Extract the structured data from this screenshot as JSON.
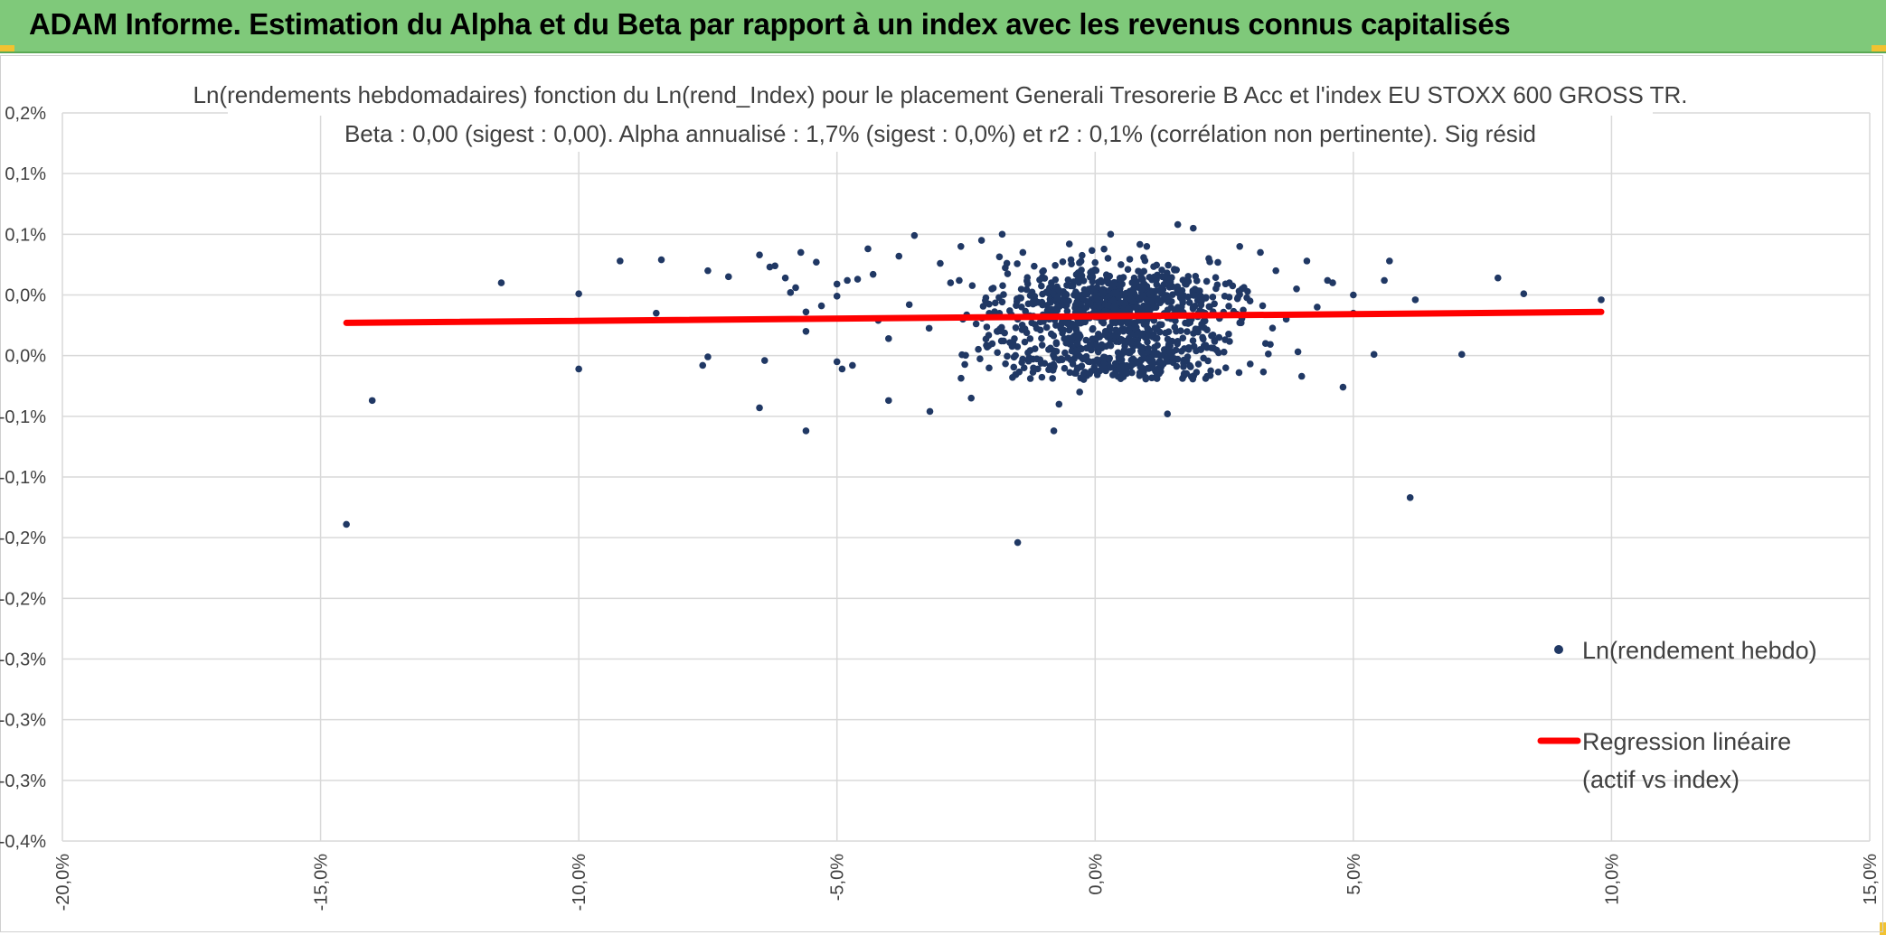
{
  "banner": {
    "title": "ADAM Informe. Estimation du Alpha et du Beta par rapport à un index avec les revenus connus capitalisés"
  },
  "colors": {
    "banner": "#7fc97a",
    "points": "#203864",
    "regression": "#ff0000",
    "grid": "#d9d9d9"
  },
  "chart_data": {
    "type": "scatter",
    "title_lines": [
      "Ln(rendements hebdomadaires) fonction du Ln(rend_Index) pour le placement Generali Tresorerie B Acc et l'index EU STOXX 600 GROSS TR.",
      "Beta : 0,00 (sigest : 0,00). Alpha annualisé : 1,7% (sigest : 0,0%) et r2 : 0,1% (corrélation non pertinente). Sig résid"
    ],
    "xlim": [
      -20,
      15
    ],
    "ylim": [
      -0.4,
      0.2
    ],
    "x_ticks": [
      -20,
      -15,
      -10,
      -5,
      0,
      5,
      10,
      15
    ],
    "x_tick_labels": [
      "-20,0%",
      "-15,0%",
      "-10,0%",
      "-5,0%",
      "0,0%",
      "5,0%",
      "10,0%",
      "15,0%"
    ],
    "y_ticks": [
      0.2,
      0.15,
      0.1,
      0.05,
      0.0,
      -0.05,
      -0.1,
      -0.15,
      -0.2,
      -0.25,
      -0.3,
      -0.35,
      -0.4
    ],
    "y_tick_labels": [
      "0,2%",
      "0,1%",
      "0,1%",
      "0,0%",
      "0,0%",
      "-0,1%",
      "-0,1%",
      "-0,2%",
      "-0,2%",
      "-0,3%",
      "-0,3%",
      "-0,3%",
      "-0,4%"
    ],
    "grid": true,
    "legend_position": "right",
    "series": [
      {
        "name": "Ln(rendement hebdo)",
        "kind": "points",
        "points": [
          [
            -14.5,
            -0.139
          ],
          [
            -14.0,
            -0.037
          ],
          [
            -11.5,
            0.06
          ],
          [
            -10.0,
            0.051
          ],
          [
            -10.0,
            -0.011
          ],
          [
            -9.2,
            0.078
          ],
          [
            -8.5,
            0.035
          ],
          [
            -8.4,
            0.079
          ],
          [
            -7.5,
            0.07
          ],
          [
            -7.5,
            -0.001
          ],
          [
            -7.1,
            0.065
          ],
          [
            -7.6,
            -0.008
          ],
          [
            -6.5,
            0.083
          ],
          [
            -6.3,
            0.073
          ],
          [
            -6.2,
            0.074
          ],
          [
            -6.4,
            -0.004
          ],
          [
            -6.5,
            -0.043
          ],
          [
            -6.0,
            0.064
          ],
          [
            -5.9,
            0.052
          ],
          [
            -5.8,
            0.056
          ],
          [
            -5.7,
            0.085
          ],
          [
            -5.6,
            0.036
          ],
          [
            -5.6,
            0.02
          ],
          [
            -5.6,
            -0.062
          ],
          [
            -5.4,
            0.077
          ],
          [
            -5.3,
            0.041
          ],
          [
            -5.0,
            0.049
          ],
          [
            -5.0,
            0.059
          ],
          [
            -4.8,
            0.062
          ],
          [
            -4.6,
            0.063
          ],
          [
            -4.4,
            0.088
          ],
          [
            -4.3,
            0.067
          ],
          [
            -4.2,
            0.029
          ],
          [
            -4.0,
            0.014
          ],
          [
            -4.0,
            -0.037
          ],
          [
            -5.0,
            -0.005
          ],
          [
            -4.9,
            -0.011
          ],
          [
            -4.7,
            -0.008
          ],
          [
            -3.8,
            0.082
          ],
          [
            -3.6,
            0.042
          ],
          [
            -3.5,
            0.099
          ],
          [
            -3.2,
            -0.046
          ],
          [
            -3.0,
            0.076
          ],
          [
            -2.8,
            0.06
          ],
          [
            -2.6,
            0.09
          ],
          [
            -2.4,
            -0.035
          ],
          [
            -2.2,
            0.095
          ],
          [
            -2.0,
            0.055
          ],
          [
            -1.9,
            0.02
          ],
          [
            -1.8,
            0.1
          ],
          [
            -1.6,
            -0.018
          ],
          [
            -1.5,
            0.03
          ],
          [
            -1.4,
            0.085
          ],
          [
            -1.5,
            -0.154
          ],
          [
            -1.2,
            0.045
          ],
          [
            -1.0,
            0.07
          ],
          [
            -0.9,
            0.005
          ],
          [
            -0.8,
            -0.062
          ],
          [
            -0.7,
            -0.04
          ],
          [
            -0.5,
            0.092
          ],
          [
            -0.3,
            -0.03
          ],
          [
            0.0,
            0.055
          ],
          [
            0.2,
            0.02
          ],
          [
            0.3,
            0.1
          ],
          [
            0.5,
            0.075
          ],
          [
            0.7,
            0.01
          ],
          [
            0.8,
            0.04
          ],
          [
            1.0,
            0.09
          ],
          [
            1.3,
            0.065
          ],
          [
            1.4,
            -0.048
          ],
          [
            1.6,
            0.108
          ],
          [
            1.9,
            0.105
          ],
          [
            2.0,
            0.035
          ],
          [
            2.2,
            0.08
          ],
          [
            2.4,
            0.015
          ],
          [
            2.6,
            0.06
          ],
          [
            2.8,
            0.09
          ],
          [
            3.0,
            0.045
          ],
          [
            3.2,
            0.085
          ],
          [
            3.3,
            0.01
          ],
          [
            3.5,
            0.07
          ],
          [
            3.7,
            0.03
          ],
          [
            3.9,
            0.055
          ],
          [
            4.0,
            -0.017
          ],
          [
            4.1,
            0.078
          ],
          [
            4.3,
            0.04
          ],
          [
            4.5,
            0.062
          ],
          [
            4.6,
            0.06
          ],
          [
            4.8,
            -0.026
          ],
          [
            5.0,
            0.05
          ],
          [
            5.0,
            0.035
          ],
          [
            5.4,
            0.001
          ],
          [
            5.6,
            0.062
          ],
          [
            5.7,
            0.078
          ],
          [
            6.1,
            -0.117
          ],
          [
            6.2,
            0.046
          ],
          [
            7.1,
            0.001
          ],
          [
            7.8,
            0.064
          ],
          [
            8.3,
            0.051
          ],
          [
            9.8,
            0.046
          ]
        ],
        "cluster_note": null
      },
      {
        "name": "Regression linéaire\n(actif vs index)",
        "kind": "line",
        "points": [
          [
            -14.5,
            0.027
          ],
          [
            9.8,
            0.036
          ]
        ]
      }
    ],
    "legend_entries": [
      "Ln(rendement hebdo)",
      "Regression linéaire",
      "(actif vs index)"
    ]
  }
}
